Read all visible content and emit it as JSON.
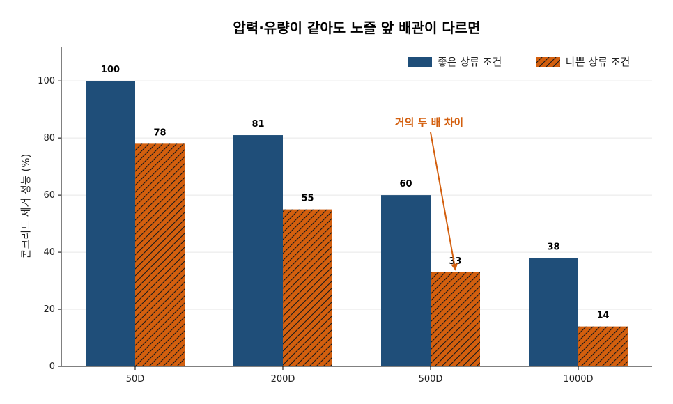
{
  "chart_data": {
    "type": "bar",
    "title": "압력·유량이 같아도 노즐 앞 배관이 다르면",
    "ylabel": "콘크리트 제거 성능 (%)",
    "xlabel": "",
    "categories": [
      "50D",
      "200D",
      "500D",
      "1000D"
    ],
    "ylim": [
      0,
      112
    ],
    "yticks": [
      0,
      20,
      40,
      60,
      80,
      100
    ],
    "series": [
      {
        "name": "좋은 상류 조건",
        "values": [
          100,
          81,
          60,
          38
        ],
        "color": "#1f4e79",
        "pattern": "solid"
      },
      {
        "name": "나쁜 상류 조건",
        "values": [
          78,
          55,
          33,
          14
        ],
        "color": "#d35f0e",
        "pattern": "hatch"
      }
    ],
    "value_labels": [
      [
        "100",
        "81",
        "60",
        "38"
      ],
      [
        "78",
        "55",
        "33",
        "14"
      ]
    ],
    "annotation": {
      "text": "거의 두 배 차이",
      "category_index": 2,
      "series_index": 1,
      "color": "#d35f0e"
    },
    "legend_position": "top-right",
    "grid": "y"
  }
}
